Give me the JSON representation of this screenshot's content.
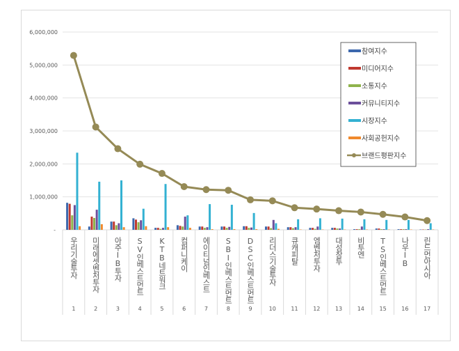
{
  "chart_data": {
    "type": "bar",
    "title": "",
    "xlabel": "",
    "ylabel": "",
    "ylim": [
      0,
      6000000
    ],
    "yticks": [
      "-",
      "1,000,000",
      "2,000,000",
      "3,000,000",
      "4,000,000",
      "5,000,000",
      "6,000,000"
    ],
    "grid": true,
    "legend_position": "top-right",
    "categories": [
      "우리기술투자",
      "미래에셋벤처투자",
      "아주IB투자",
      "SV인베스트먼트",
      "KTB네트워크",
      "컴퍼니케이",
      "에이티넘인베스트",
      "SBI인베스트먼트",
      "DSC인베스트먼트",
      "리더스기술투자",
      "큐캐피탈",
      "엠벤처투자",
      "대성창투",
      "비투엔",
      "TS인베스트먼트",
      "나우IB",
      "린드먼아시아"
    ],
    "ranks": [
      "1",
      "2",
      "3",
      "4",
      "5",
      "6",
      "7",
      "8",
      "9",
      "10",
      "11",
      "12",
      "13",
      "14",
      "15",
      "16",
      "17"
    ],
    "series": [
      {
        "name": "참여지수",
        "type": "bar",
        "color": "#3c68ad",
        "values": [
          820000,
          100000,
          250000,
          350000,
          60000,
          140000,
          100000,
          100000,
          110000,
          100000,
          80000,
          60000,
          60000,
          20000,
          40000,
          20000,
          10000
        ]
      },
      {
        "name": "미디어지수",
        "type": "bar",
        "color": "#c0392f",
        "values": [
          790000,
          400000,
          250000,
          310000,
          60000,
          120000,
          100000,
          100000,
          110000,
          100000,
          80000,
          60000,
          60000,
          20000,
          40000,
          20000,
          10000
        ]
      },
      {
        "name": "소통지수",
        "type": "bar",
        "color": "#8fb34c",
        "values": [
          440000,
          360000,
          140000,
          230000,
          30000,
          100000,
          60000,
          60000,
          60000,
          50000,
          50000,
          30000,
          40000,
          20000,
          20000,
          20000,
          10000
        ]
      },
      {
        "name": "커뮤니티지수",
        "type": "bar",
        "color": "#6c4f9b",
        "values": [
          750000,
          610000,
          200000,
          290000,
          60000,
          400000,
          80000,
          90000,
          70000,
          300000,
          80000,
          100000,
          40000,
          100000,
          20000,
          20000,
          20000
        ]
      },
      {
        "name": "시장지수",
        "type": "bar",
        "color": "#33b1d2",
        "values": [
          2340000,
          1460000,
          1500000,
          640000,
          1390000,
          440000,
          780000,
          760000,
          510000,
          200000,
          320000,
          350000,
          340000,
          320000,
          300000,
          300000,
          200000
        ]
      },
      {
        "name": "사회공헌지수",
        "type": "bar",
        "color": "#f0892c",
        "values": [
          110000,
          170000,
          80000,
          110000,
          80000,
          60000,
          20000,
          20000,
          20000,
          30000,
          10000,
          10000,
          10000,
          10000,
          10000,
          10000,
          10000
        ]
      },
      {
        "name": "브랜드평판지수",
        "type": "line",
        "color": "#958a56",
        "values": [
          5290000,
          3120000,
          2460000,
          1990000,
          1710000,
          1310000,
          1220000,
          1200000,
          910000,
          880000,
          670000,
          630000,
          580000,
          540000,
          470000,
          390000,
          280000
        ]
      }
    ]
  }
}
